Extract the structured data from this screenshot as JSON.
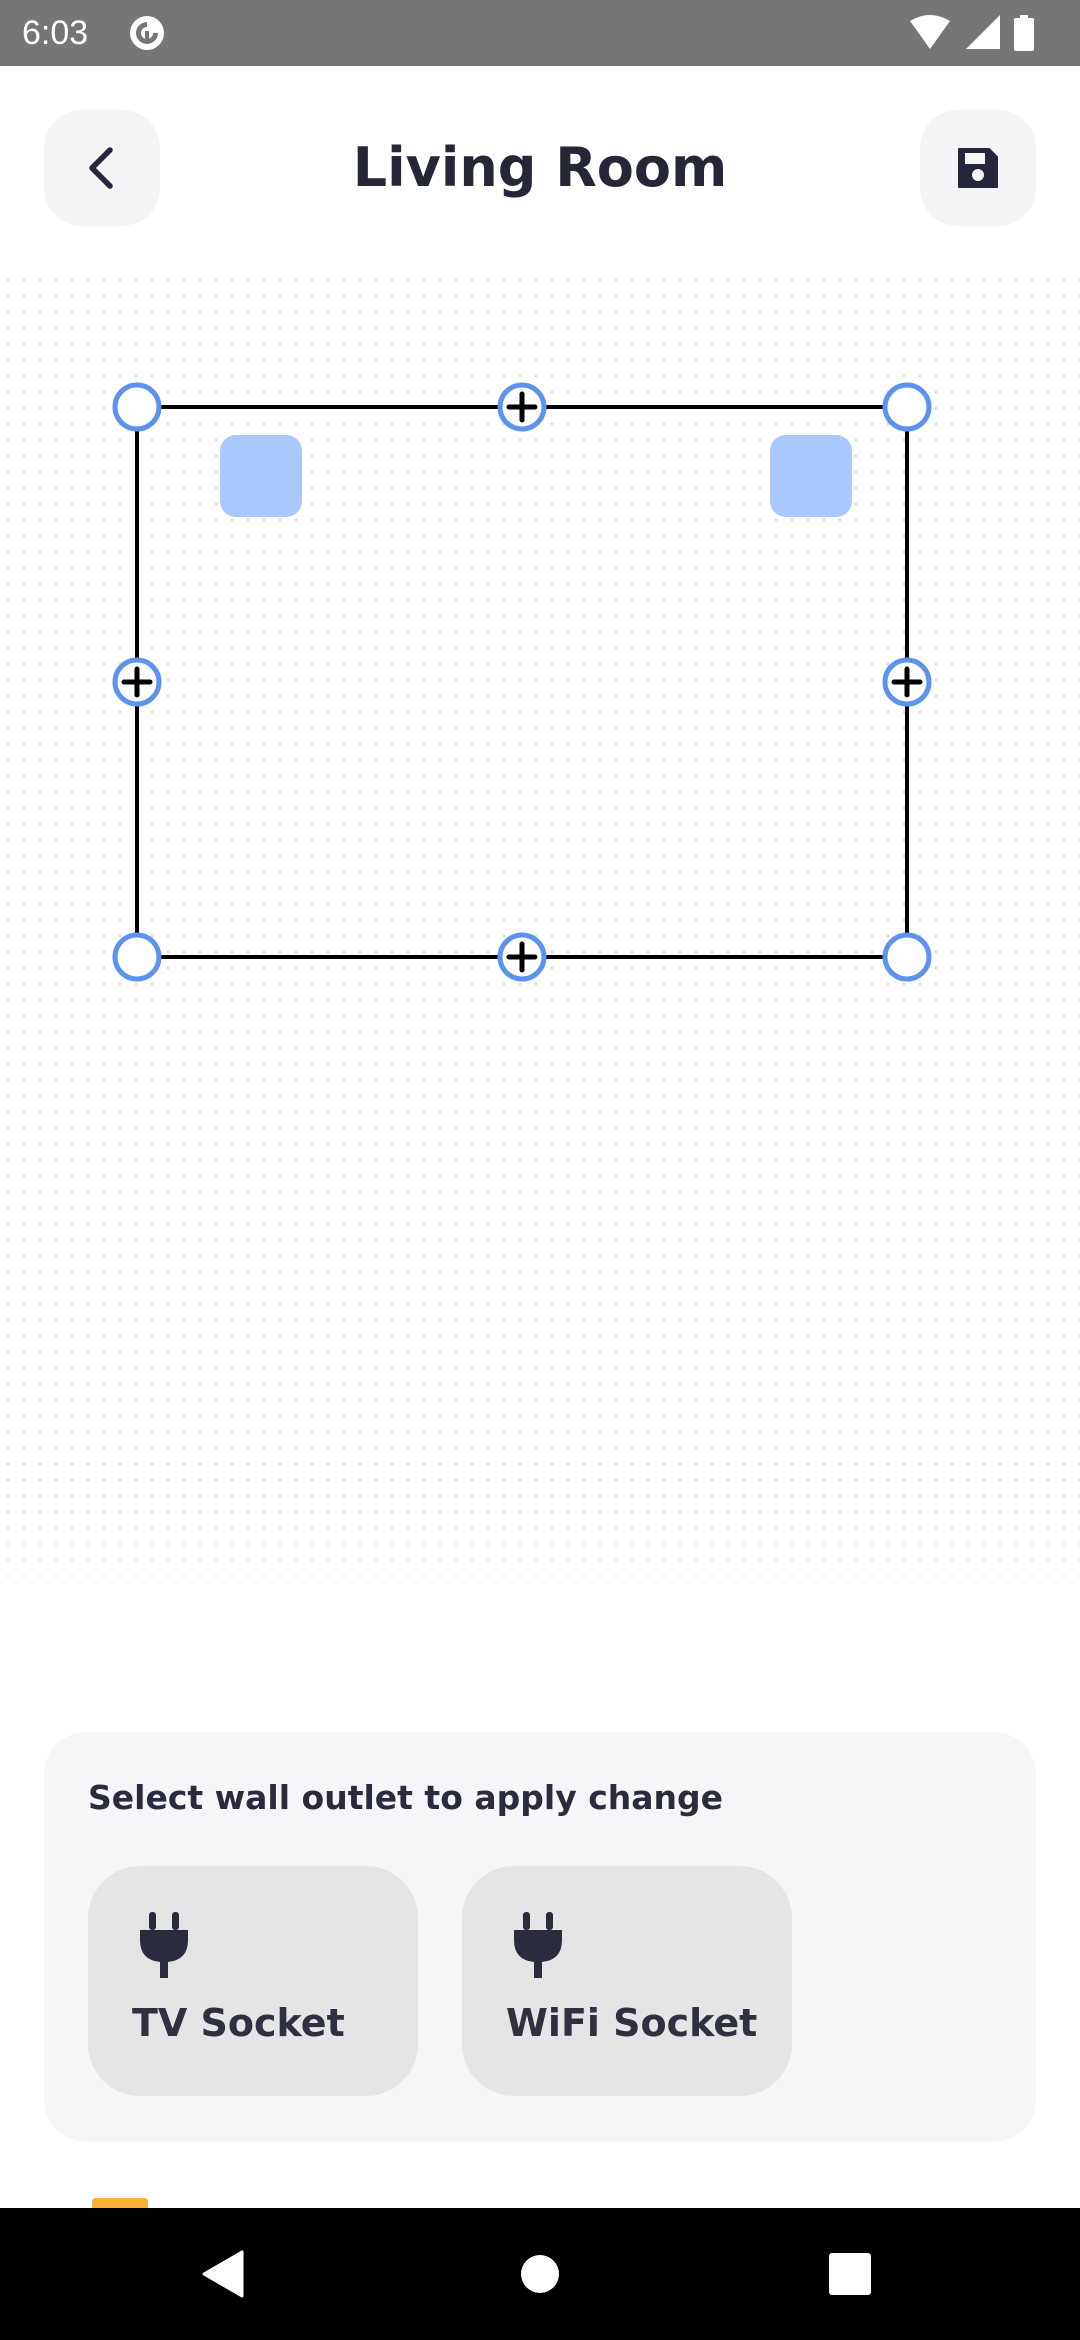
{
  "status_bar": {
    "time": "6:03",
    "app_icon": "pocket-casts-style-icon",
    "icons": [
      "wifi-icon",
      "signal-icon",
      "battery-icon"
    ]
  },
  "header": {
    "title": "Living Room",
    "back_icon": "chevron-left-icon",
    "save_icon": "floppy-disk-icon"
  },
  "canvas": {
    "accent_color": "#5b93ee",
    "wall_color": "#000000",
    "outlet_color": "#a9c8fb"
  },
  "outlet_panel": {
    "title": "Select wall outlet to apply change",
    "sockets": [
      {
        "label": "TV Socket",
        "icon": "plug-icon"
      },
      {
        "label": "WiFi Socket",
        "icon": "plug-icon"
      }
    ]
  },
  "nav_bar": {
    "buttons": [
      "back-triangle-icon",
      "home-circle-icon",
      "recents-square-icon"
    ]
  }
}
